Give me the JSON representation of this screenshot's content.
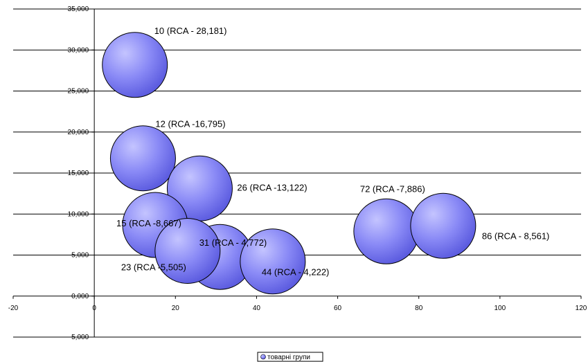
{
  "chart_data": {
    "type": "bubble",
    "xlim": [
      -20,
      120
    ],
    "ylim": [
      -5,
      35
    ],
    "x_ticks": [
      -20,
      0,
      20,
      40,
      60,
      80,
      100,
      120
    ],
    "y_ticks": [
      35,
      30,
      25,
      20,
      15,
      10,
      5,
      0,
      -5
    ],
    "x_tick_labels": [
      "-20",
      "0",
      "20",
      "40",
      "60",
      "80",
      "100",
      "120"
    ],
    "y_tick_labels": [
      "35,000",
      "30,000",
      "25,000",
      "20,000",
      "15,000",
      "10,000",
      "5,000",
      "0,000",
      "-5,000"
    ],
    "grid": "horizontal",
    "legend": {
      "position": "bottom",
      "entries": [
        "товарні групи"
      ]
    },
    "series": [
      {
        "name": "товарні групи",
        "color": "#8080ff",
        "points": [
          {
            "x": 10,
            "y": 28.181,
            "label": "10 (RCA - 28,181)"
          },
          {
            "x": 12,
            "y": 16.795,
            "label": "12 (RCA -16,795)"
          },
          {
            "x": 26,
            "y": 13.122,
            "label": "26 (RCA -13,122)"
          },
          {
            "x": 15,
            "y": 8.667,
            "label": "15 (RCA -8,667)"
          },
          {
            "x": 31,
            "y": 4.772,
            "label": "31 (RCA - 4,772)"
          },
          {
            "x": 23,
            "y": 5.505,
            "label": "23 (RCA -5,505)"
          },
          {
            "x": 44,
            "y": 4.222,
            "label": "44 (RCA - 4,222)"
          },
          {
            "x": 72,
            "y": 7.886,
            "label": "72 (RCA -7,886)"
          },
          {
            "x": 86,
            "y": 8.561,
            "label": "86 (RCA - 8,561)"
          }
        ]
      }
    ]
  }
}
